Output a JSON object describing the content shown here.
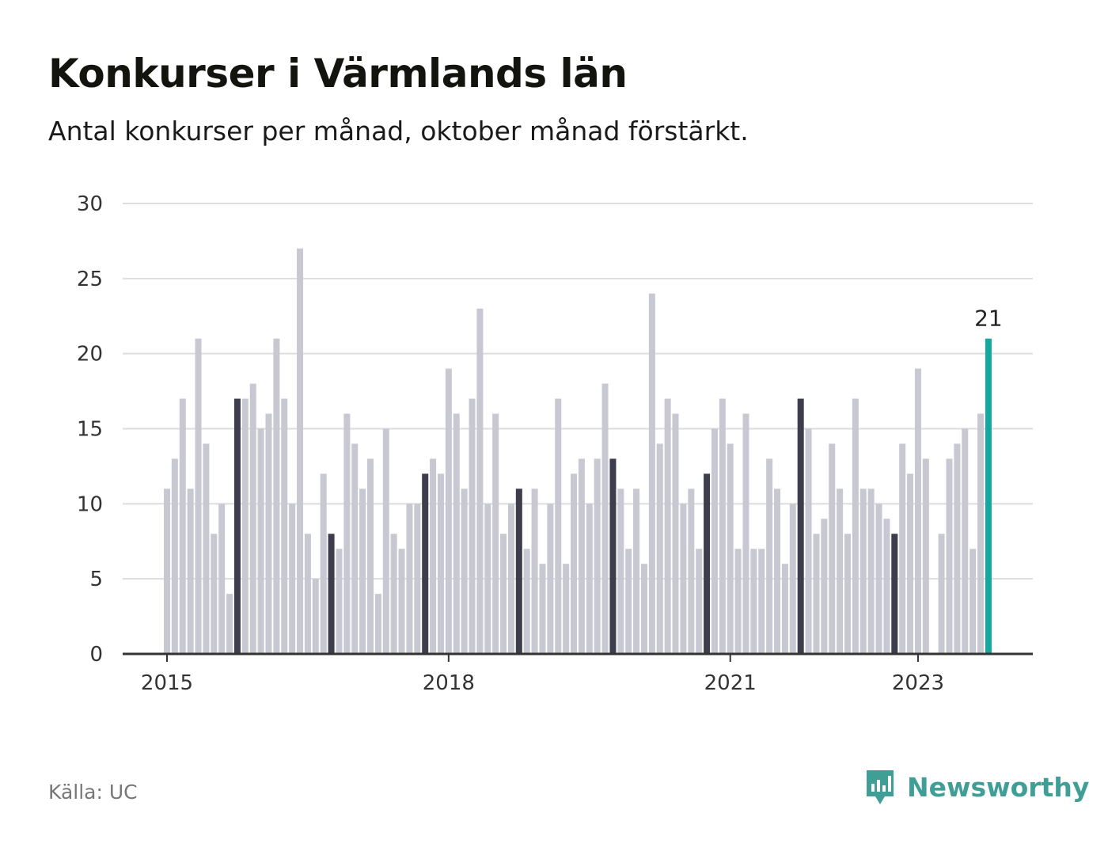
{
  "title": "Konkurser i Värmlands län",
  "subtitle": "Antal konkurser per månad, oktober månad förstärkt.",
  "source": "Källa: UC",
  "brand": {
    "name": "Newsworthy",
    "icon": "newsworthy-logo-icon"
  },
  "colors": {
    "normal": "#c8c8d2",
    "october": "#3d3d4d",
    "latest": "#14a8a0",
    "grid": "#dddddd",
    "axis": "#333333"
  },
  "chart_data": {
    "type": "bar",
    "title": "Konkurser i Värmlands län",
    "subtitle": "Antal konkurser per månad, oktober månad förstärkt.",
    "xlabel": "",
    "ylabel": "",
    "ylim": [
      0,
      30
    ],
    "yticks": [
      0,
      5,
      10,
      15,
      20,
      25,
      30
    ],
    "xticks": [
      {
        "label": "2015",
        "index": 0
      },
      {
        "label": "2018",
        "index": 36
      },
      {
        "label": "2021",
        "index": 72
      },
      {
        "label": "2023",
        "index": 96
      }
    ],
    "start": "2015-01",
    "highlight_month": "oktober",
    "values": [
      11,
      13,
      17,
      11,
      21,
      14,
      8,
      10,
      4,
      17,
      17,
      18,
      15,
      16,
      21,
      17,
      10,
      27,
      8,
      5,
      12,
      8,
      7,
      16,
      14,
      11,
      13,
      4,
      15,
      8,
      7,
      10,
      10,
      12,
      13,
      12,
      19,
      16,
      11,
      17,
      23,
      10,
      16,
      8,
      10,
      11,
      7,
      11,
      6,
      10,
      17,
      6,
      12,
      13,
      10,
      13,
      18,
      13,
      11,
      7,
      11,
      6,
      24,
      14,
      17,
      16,
      10,
      11,
      7,
      12,
      15,
      17,
      14,
      7,
      16,
      7,
      7,
      13,
      11,
      6,
      10,
      17,
      15,
      8,
      9,
      14,
      11,
      8,
      17,
      11,
      11,
      10,
      9,
      8,
      14,
      12,
      19,
      13,
      0,
      8,
      13,
      14,
      15,
      7,
      16,
      21
    ],
    "highlighted_label": "21",
    "grid": true,
    "legend": "none"
  }
}
